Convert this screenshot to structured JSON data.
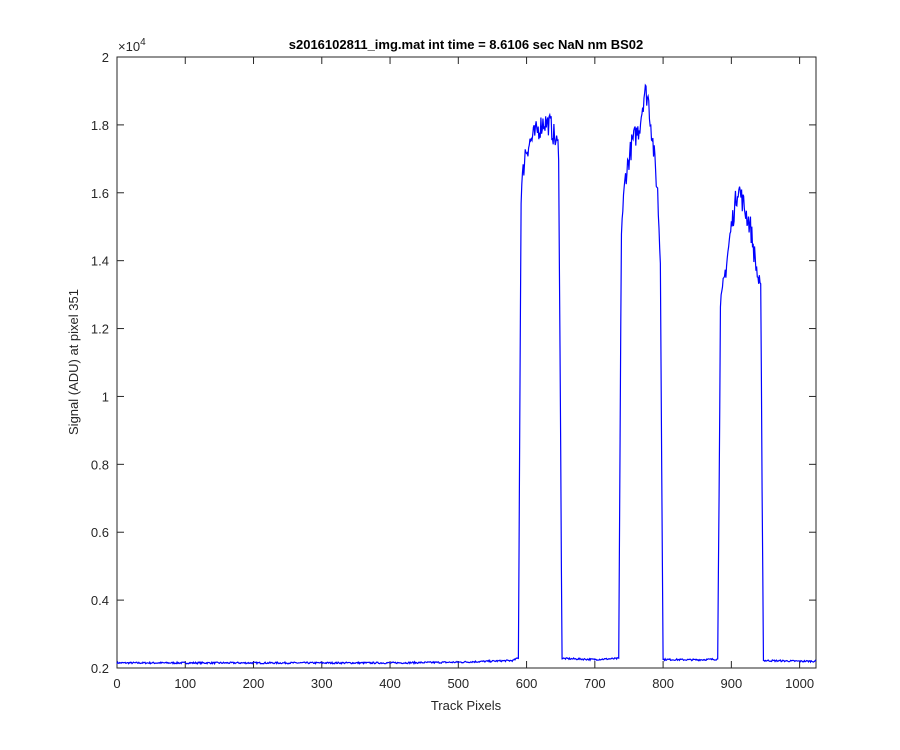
{
  "chart_data": {
    "type": "line",
    "title": "s2016102811_img.mat int time = 8.6106 sec  NaN nm BS02",
    "xlabel": "Track Pixels",
    "ylabel": "Signal (ADU) at pixel 351",
    "xlim": [
      0,
      1024
    ],
    "ylim": [
      2000,
      20000
    ],
    "y_exponent_label": "×10",
    "y_exponent_power": "4",
    "x_ticks": [
      0,
      100,
      200,
      300,
      400,
      500,
      600,
      700,
      800,
      900,
      1000
    ],
    "x_tick_labels": [
      "0",
      "100",
      "200",
      "300",
      "400",
      "500",
      "600",
      "700",
      "800",
      "900",
      "1000"
    ],
    "y_ticks": [
      2000,
      4000,
      6000,
      8000,
      10000,
      12000,
      14000,
      16000,
      18000,
      20000
    ],
    "y_tick_labels": [
      "0.2",
      "0.4",
      "0.6",
      "0.8",
      "1",
      "1.2",
      "1.4",
      "1.6",
      "1.8",
      "2"
    ],
    "grid": false,
    "series": [
      {
        "color": "#0000ff",
        "points": [
          [
            0,
            2150
          ],
          [
            100,
            2150
          ],
          [
            200,
            2150
          ],
          [
            300,
            2150
          ],
          [
            400,
            2150
          ],
          [
            500,
            2170
          ],
          [
            580,
            2220
          ],
          [
            588,
            2300
          ],
          [
            592,
            16000
          ],
          [
            598,
            17200
          ],
          [
            605,
            17500
          ],
          [
            615,
            17800
          ],
          [
            625,
            18100
          ],
          [
            635,
            18000
          ],
          [
            643,
            17500
          ],
          [
            647,
            17300
          ],
          [
            652,
            2280
          ],
          [
            700,
            2250
          ],
          [
            735,
            2280
          ],
          [
            739,
            15000
          ],
          [
            745,
            16500
          ],
          [
            755,
            17500
          ],
          [
            765,
            17900
          ],
          [
            773,
            19000
          ],
          [
            778,
            18800
          ],
          [
            785,
            17500
          ],
          [
            792,
            16000
          ],
          [
            796,
            14000
          ],
          [
            800,
            2250
          ],
          [
            850,
            2240
          ],
          [
            880,
            2260
          ],
          [
            884,
            12500
          ],
          [
            890,
            13500
          ],
          [
            900,
            15000
          ],
          [
            910,
            16200
          ],
          [
            920,
            15500
          ],
          [
            928,
            15000
          ],
          [
            935,
            14000
          ],
          [
            943,
            13000
          ],
          [
            947,
            2220
          ],
          [
            1000,
            2200
          ],
          [
            1024,
            2200
          ]
        ]
      }
    ]
  }
}
